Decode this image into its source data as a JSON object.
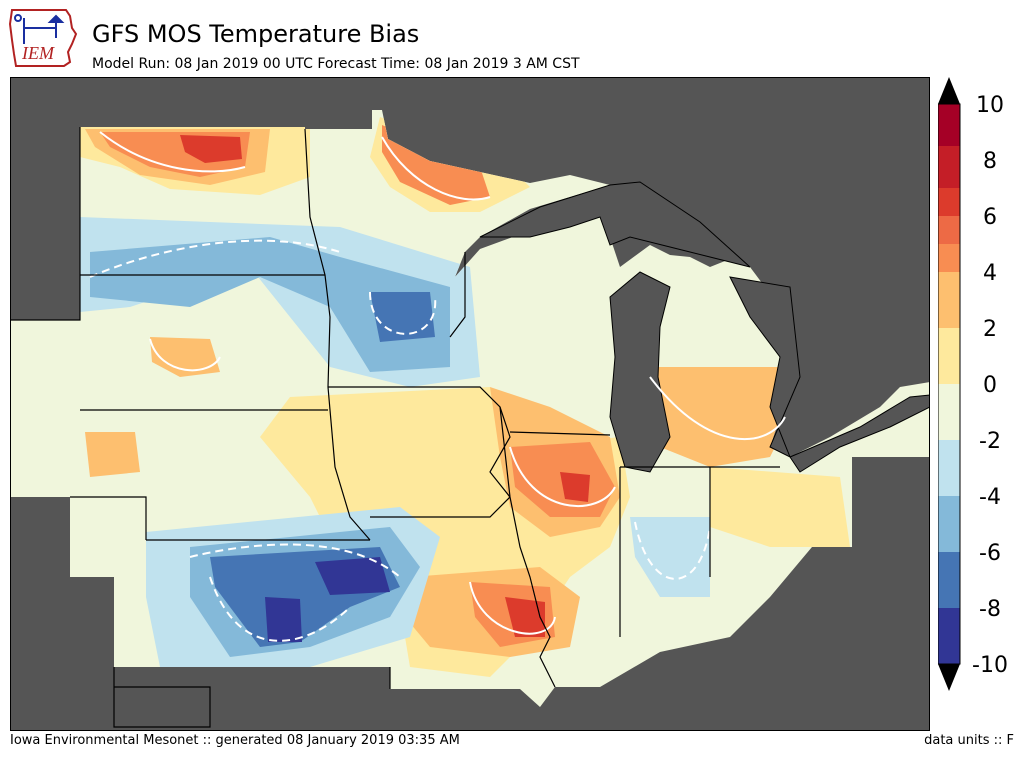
{
  "header": {
    "logo_text": "IEM",
    "title": "GFS MOS Temperature Bias",
    "subtitle": "Model Run: 08 Jan 2019 00 UTC Forecast Time: 08 Jan 2019 3 AM CST"
  },
  "footer": {
    "left": "Iowa Environmental Mesonet :: generated 08 January 2019 03:35 AM",
    "right": "data units :: F"
  },
  "colors": {
    "background_land_outside": "#555555",
    "water": "#555555",
    "border": "#000000"
  },
  "colorbar": {
    "tick_labels": [
      "10",
      "8",
      "6",
      "4",
      "2",
      "0",
      "-2",
      "-4",
      "-6",
      "-8",
      "-10"
    ],
    "bins": [
      {
        "range": "8 to 10",
        "color": "#a50026"
      },
      {
        "range": "7 to 8",
        "color": "#c41e27"
      },
      {
        "range": "6 to 7",
        "color": "#dc3b2c"
      },
      {
        "range": "5 to 6",
        "color": "#ed6a45"
      },
      {
        "range": "4 to 5",
        "color": "#f88d52"
      },
      {
        "range": "2 to 4",
        "color": "#fdbf6f"
      },
      {
        "range": "0 to 2",
        "color": "#fee99d"
      },
      {
        "range": "-2 to 0",
        "color": "#f0f6dc"
      },
      {
        "range": "-4 to -2",
        "color": "#c0e2ee"
      },
      {
        "range": "-6 to -4",
        "color": "#84b9d9"
      },
      {
        "range": "-8 to -6",
        "color": "#4575b4"
      },
      {
        "range": "-10 to -8",
        "color": "#313695"
      }
    ],
    "extend": "both"
  }
}
